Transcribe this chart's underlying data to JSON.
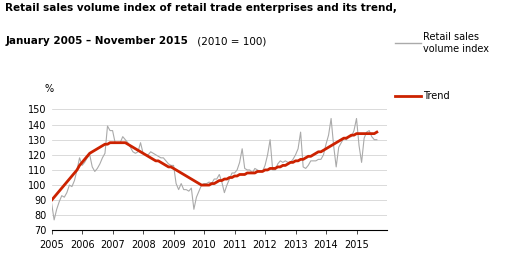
{
  "title_line1": "Retail sales volume index of retail trade enterprises and its trend,",
  "title_line2_bold": "January 2005 – November 2015",
  "title_line2_normal": " (2010 = 100)",
  "ylabel": "%",
  "ylim": [
    70,
    155
  ],
  "yticks": [
    70,
    80,
    90,
    100,
    110,
    120,
    130,
    140,
    150
  ],
  "xtick_years": [
    2005,
    2006,
    2007,
    2008,
    2009,
    2010,
    2011,
    2012,
    2013,
    2014,
    2015
  ],
  "legend_index_label": "Retail sales\nvolume index",
  "legend_trend_label": "Trend",
  "index_color": "#aaaaaa",
  "trend_color": "#cc2200",
  "background_color": "#ffffff",
  "retail_index": [
    88,
    77,
    84,
    89,
    93,
    92,
    95,
    100,
    99,
    103,
    110,
    118,
    113,
    115,
    118,
    120,
    112,
    109,
    111,
    114,
    118,
    121,
    139,
    136,
    136,
    128,
    128,
    128,
    132,
    130,
    128,
    125,
    122,
    121,
    122,
    128,
    121,
    120,
    120,
    122,
    121,
    120,
    119,
    118,
    118,
    116,
    114,
    113,
    113,
    101,
    97,
    101,
    97,
    97,
    96,
    98,
    84,
    92,
    96,
    100,
    101,
    101,
    102,
    101,
    104,
    104,
    107,
    102,
    95,
    100,
    104,
    108,
    108,
    110,
    115,
    124,
    111,
    110,
    110,
    108,
    111,
    110,
    109,
    109,
    113,
    120,
    130,
    110,
    110,
    114,
    116,
    115,
    116,
    115,
    115,
    117,
    120,
    124,
    135,
    112,
    111,
    113,
    116,
    116,
    116,
    117,
    117,
    120,
    127,
    133,
    144,
    126,
    112,
    125,
    128,
    131,
    130,
    132,
    132,
    136,
    144,
    126,
    115,
    131,
    135,
    136,
    132,
    130,
    130
  ],
  "trend": [
    90,
    92,
    94,
    96,
    98,
    100,
    102,
    104,
    106,
    108,
    110,
    113,
    115,
    117,
    119,
    121,
    122,
    123,
    124,
    125,
    126,
    127,
    127,
    128,
    128,
    128,
    128,
    128,
    128,
    128,
    127,
    126,
    125,
    124,
    123,
    122,
    121,
    120,
    119,
    118,
    117,
    116,
    116,
    115,
    114,
    113,
    112,
    112,
    111,
    110,
    109,
    108,
    107,
    106,
    105,
    104,
    103,
    102,
    101,
    100,
    100,
    100,
    100,
    101,
    101,
    102,
    103,
    103,
    104,
    104,
    105,
    105,
    106,
    106,
    107,
    107,
    107,
    108,
    108,
    108,
    108,
    109,
    109,
    109,
    110,
    110,
    111,
    111,
    111,
    112,
    112,
    113,
    113,
    114,
    115,
    115,
    116,
    116,
    117,
    117,
    118,
    119,
    119,
    120,
    121,
    122,
    122,
    123,
    124,
    125,
    126,
    127,
    128,
    129,
    130,
    131,
    131,
    132,
    133,
    133,
    134,
    134,
    134,
    134,
    134,
    134,
    134,
    134,
    135
  ]
}
